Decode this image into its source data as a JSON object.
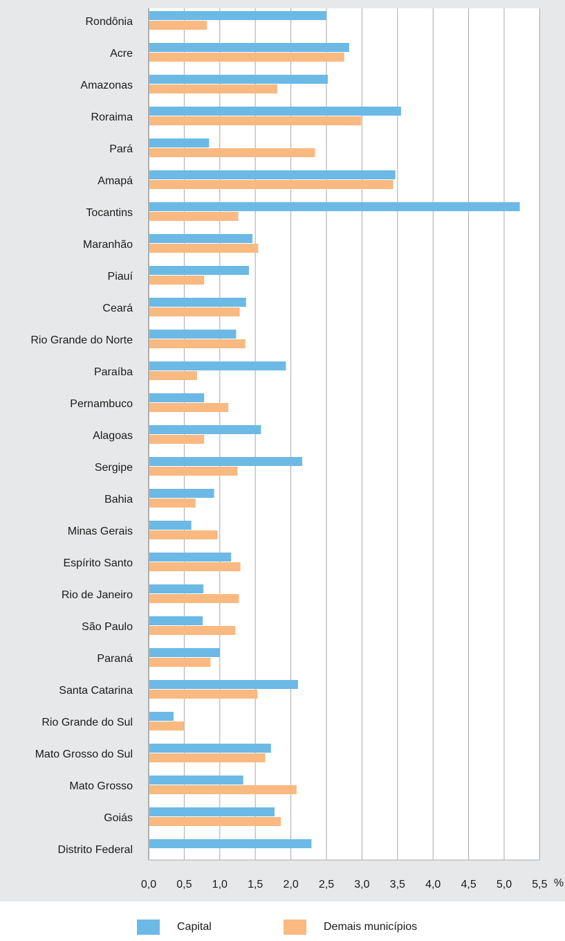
{
  "chart_data": {
    "type": "bar",
    "orientation": "horizontal",
    "categories": [
      "Rondônia",
      "Acre",
      "Amazonas",
      "Roraima",
      "Pará",
      "Amapá",
      "Tocantins",
      "Maranhão",
      "Piauí",
      "Ceará",
      "Rio Grande do Norte",
      "Paraíba",
      "Pernambuco",
      "Alagoas",
      "Sergipe",
      "Bahia",
      "Minas Gerais",
      "Espírito Santo",
      "Rio de Janeiro",
      "São Paulo",
      "Paraná",
      "Santa Catarina",
      "Rio Grande do Sul",
      "Mato Grosso do Sul",
      "Mato Grosso",
      "Goiás",
      "Distrito Federal"
    ],
    "series": [
      {
        "name": "Capital",
        "color": "#6cb9e6",
        "values": [
          2.5,
          2.82,
          2.52,
          3.55,
          0.85,
          3.47,
          5.22,
          1.46,
          1.41,
          1.37,
          1.23,
          1.93,
          0.78,
          1.58,
          2.16,
          0.92,
          0.6,
          1.16,
          0.77,
          0.76,
          1.0,
          2.1,
          0.35,
          1.72,
          1.33,
          1.77,
          2.29
        ]
      },
      {
        "name": "Demais municípios",
        "color": "#f9b980",
        "values": [
          0.82,
          2.75,
          1.81,
          2.99,
          2.34,
          3.44,
          1.26,
          1.54,
          0.78,
          1.28,
          1.36,
          0.68,
          1.12,
          0.78,
          1.25,
          0.66,
          0.97,
          1.29,
          1.27,
          1.22,
          0.87,
          1.53,
          0.5,
          1.64,
          2.08,
          1.86,
          null
        ]
      }
    ],
    "xlim": [
      0,
      5.5
    ],
    "xticks": [
      "0,0",
      "0,5",
      "1,0",
      "1,5",
      "2,0",
      "2,5",
      "3,0",
      "3,5",
      "4,0",
      "4,5",
      "5,0",
      "5,5"
    ],
    "xunit": "%",
    "grid": "vertical",
    "legend": "bottom"
  }
}
